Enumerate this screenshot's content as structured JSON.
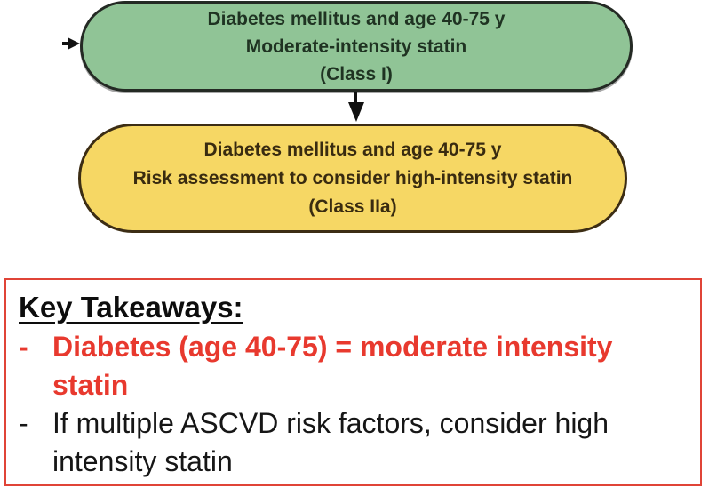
{
  "colors": {
    "green_fill": "#90c496",
    "green_border": "#242a24",
    "green_text": "#1f3322",
    "yellow_fill": "#f6d764",
    "yellow_border": "#3c2d14",
    "yellow_text": "#392b10",
    "red_text": "#e8392e",
    "red_border": "#e04437",
    "arrow_color": "#111111",
    "black_text": "#161616"
  },
  "flowchart": {
    "nodes": [
      {
        "id": "moderate-intensity-statin",
        "lines": [
          "Diabetes mellitus and age 40-75 y",
          "Moderate-intensity statin",
          "(Class I)"
        ]
      },
      {
        "id": "high-intensity-statin",
        "lines": [
          "Diabetes mellitus and age 40-75 y",
          "Risk assessment to consider high-intensity statin",
          "(Class IIa)"
        ]
      }
    ],
    "icons": {
      "down_arrow": "down-arrow-icon",
      "incoming_arrow": "incoming-arrow-icon"
    }
  },
  "takeaways": {
    "title": "Key Takeaways:",
    "bullets": [
      {
        "dash": "-",
        "style": "red-bold",
        "lines": [
          "Diabetes (age 40-75) = moderate intensity",
          "statin"
        ]
      },
      {
        "dash": "-",
        "style": "black-regular",
        "lines": [
          "If multiple ASCVD risk factors, consider high",
          "intensity statin"
        ]
      }
    ]
  }
}
